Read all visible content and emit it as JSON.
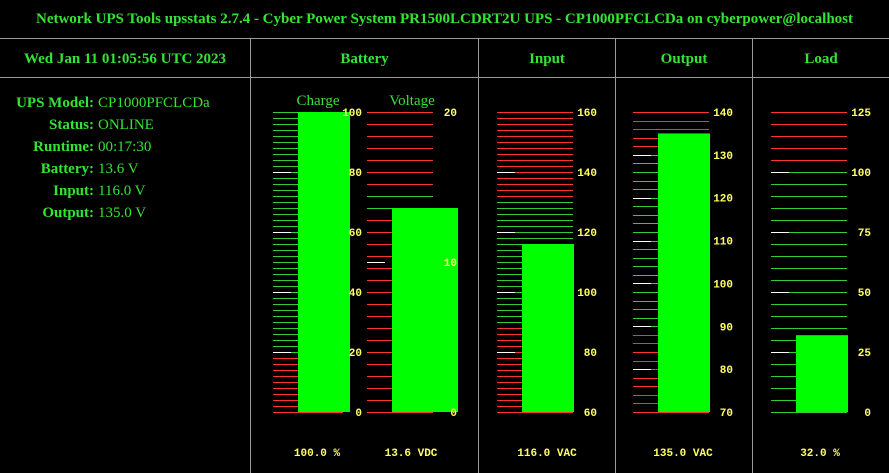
{
  "title": "Network UPS Tools upsstats 2.7.4 - Cyber Power System PR1500LCDRT2U UPS - CP1000PFCLCDa on cyberpower@localhost",
  "datetime": "Wed Jan 11 01:05:56 UTC 2023",
  "headers": {
    "battery": "Battery",
    "input": "Input",
    "output": "Output",
    "load": "Load"
  },
  "sublabels": {
    "charge": "Charge",
    "voltage": "Voltage"
  },
  "info": [
    {
      "label": "UPS Model:",
      "value": "CP1000PFCLCDa"
    },
    {
      "label": "Status:",
      "value": "ONLINE"
    },
    {
      "label": "Runtime:",
      "value": "00:17:30"
    },
    {
      "label": "Battery:",
      "value": "13.6 V"
    },
    {
      "label": "Input:",
      "value": "116.0 V"
    },
    {
      "label": "Output:",
      "value": "135.0 V"
    }
  ],
  "colors": {
    "bar": "#00ff00",
    "tick_normal": "#33cc33",
    "tick_warn": "#ff3333",
    "tick_major": "#ffffff",
    "label": "#ffff66"
  },
  "gauges": [
    {
      "id": "charge",
      "min": 0,
      "max": 100,
      "value": 100,
      "labels": [
        "100",
        "80",
        "60",
        "40",
        "20",
        "0"
      ],
      "label_values": [
        100,
        80,
        60,
        40,
        20,
        0
      ],
      "minor": 50,
      "red_below": 20,
      "readout": "100.0 %"
    },
    {
      "id": "voltage",
      "min": 0,
      "max": 20,
      "value": 13.6,
      "labels": [
        "20",
        "10",
        "0"
      ],
      "label_values": [
        20,
        10,
        0
      ],
      "minor": 25,
      "red_below": 13,
      "red_above": 15,
      "readout": "13.6 VDC"
    },
    {
      "id": "input",
      "min": 60,
      "max": 160,
      "value": 116,
      "labels": [
        "160",
        "140",
        "120",
        "100",
        "80",
        "60"
      ],
      "label_values": [
        160,
        140,
        120,
        100,
        80,
        60
      ],
      "minor": 50,
      "red_below": 90,
      "red_above": 130,
      "readout": "116.0 VAC"
    },
    {
      "id": "output",
      "min": 70,
      "max": 140,
      "value": 135,
      "labels": [
        "140",
        "130",
        "120",
        "110",
        "100",
        "90",
        "80",
        "70"
      ],
      "label_values": [
        140,
        130,
        120,
        110,
        100,
        90,
        80,
        70
      ],
      "minor": 35,
      "red_below": 90,
      "red_above": 130,
      "readout": "135.0 VAC"
    },
    {
      "id": "load",
      "min": 0,
      "max": 125,
      "value": 32,
      "labels": [
        "125",
        "100",
        "75",
        "50",
        "25",
        "0"
      ],
      "label_values": [
        125,
        100,
        75,
        50,
        25,
        0
      ],
      "minor": 25,
      "red_above": 100,
      "readout": "32.0 %"
    }
  ]
}
